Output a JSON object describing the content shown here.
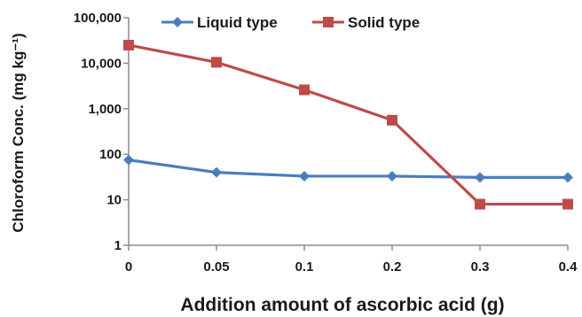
{
  "chart_data": {
    "type": "line",
    "x_scale": "categorical",
    "y_scale": "log10",
    "categories": [
      "0",
      "0.05",
      "0.1",
      "0.2",
      "0.3",
      "0.4"
    ],
    "y_ticks": [
      "1",
      "10",
      "100",
      "1,000",
      "10,000",
      "100,000"
    ],
    "ylim": [
      1,
      100000
    ],
    "xlabel": "Addition amount of ascorbic acid (g)",
    "ylabel": "Chloroform Conc. (mg kg⁻¹)",
    "legend_position": "top-center",
    "grid": false,
    "series": [
      {
        "name": "Liquid type",
        "color": "#4a7ebb",
        "marker": "diamond",
        "values": [
          75,
          40,
          33,
          33,
          31,
          31
        ]
      },
      {
        "name": "Solid type",
        "color": "#be4b48",
        "marker": "square",
        "values": [
          25000,
          10500,
          2600,
          560,
          8,
          8
        ]
      }
    ]
  }
}
